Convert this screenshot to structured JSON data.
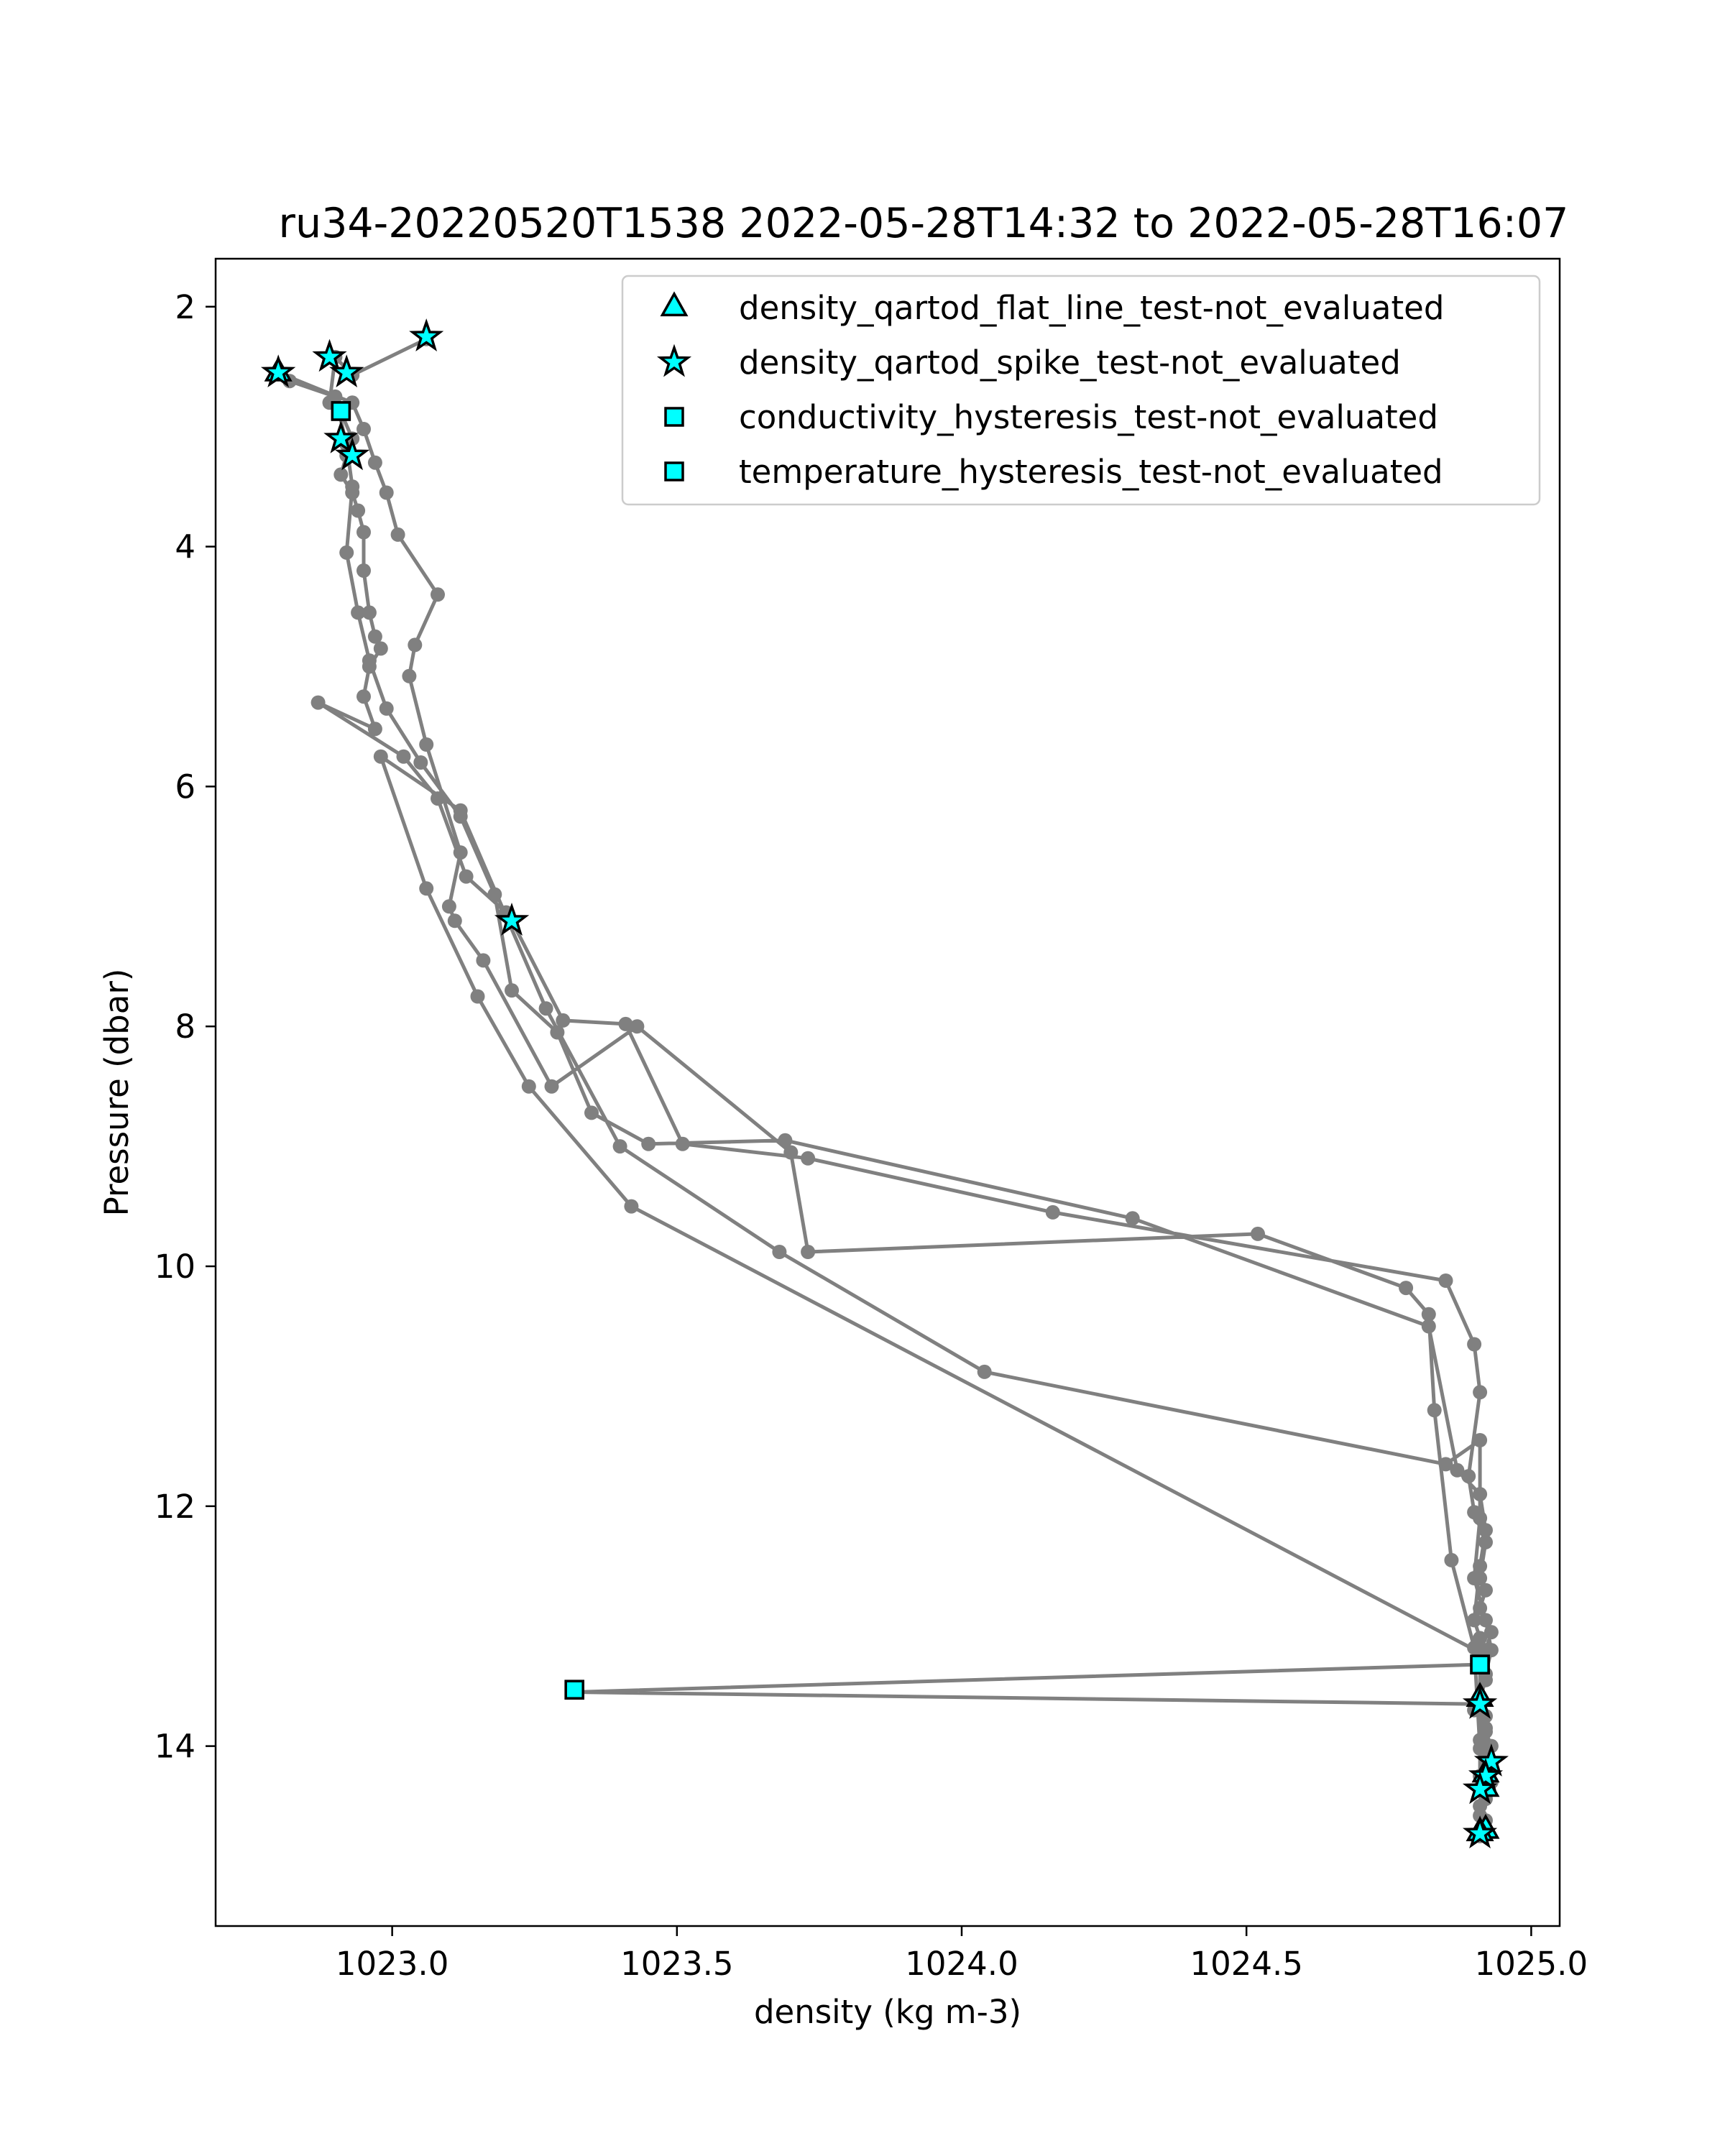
{
  "chart_data": {
    "type": "line",
    "title": "ru34-20220520T1538 2022-05-28T14:32 to 2022-05-28T16:07",
    "xlabel": "density (kg m-3)",
    "ylabel": "Pressure (dbar)",
    "xlim": [
      1022.69,
      1025.05
    ],
    "ylim": [
      15.5,
      1.6
    ],
    "y_inverted": true,
    "xticks": [
      1023.0,
      1023.5,
      1024.0,
      1024.5,
      1025.0
    ],
    "xtick_labels": [
      "1023.0",
      "1023.5",
      "1024.0",
      "1024.5",
      "1025.0"
    ],
    "yticks": [
      2,
      4,
      6,
      8,
      10,
      12,
      14
    ],
    "ytick_labels": [
      "2",
      "4",
      "6",
      "8",
      "10",
      "12",
      "14"
    ],
    "grid": false,
    "legend_position": "upper-right",
    "line_color": "#808080",
    "marker_fill": "#00ffff",
    "profile": {
      "x": [
        1023.06,
        1022.93,
        1022.9,
        1022.89,
        1022.91,
        1022.93,
        1022.92,
        1022.91,
        1022.93,
        1022.94,
        1022.95,
        1022.95,
        1022.96,
        1022.97,
        1022.98,
        1022.96,
        1022.95,
        1022.97,
        1022.87,
        1023.02,
        1023.08,
        1023.13,
        1023.2,
        1023.21,
        1023.3,
        1023.41,
        1023.51,
        1023.73,
        1024.16,
        1024.85,
        1024.9,
        1024.91,
        1024.89,
        1024.9,
        1024.92,
        1024.91,
        1024.92,
        1024.91,
        1024.93,
        1024.92,
        1024.91,
        1024.92,
        1024.91,
        1024.9,
        1024.92,
        1024.91,
        1024.92,
        1024.93,
        1024.92,
        1024.91,
        1024.91,
        1023.32,
        1024.91,
        1024.92,
        1024.92,
        1024.93,
        1024.92,
        1024.91,
        1024.92,
        1024.91,
        1024.92,
        1024.92,
        1024.91,
        1024.91,
        1024.92,
        1024.93,
        1024.92,
        1024.91,
        1024.9,
        1024.86,
        1024.83,
        1024.82,
        1024.78,
        1024.52,
        1023.73,
        1023.7,
        1023.43,
        1023.28,
        1023.16,
        1023.11,
        1023.1,
        1023.12,
        1023.06,
        1023.03,
        1023.04,
        1023.08,
        1023.01,
        1022.99,
        1022.97,
        1022.95,
        1022.93,
        1022.8,
        1022.82,
        1022.9,
        1022.92,
        1022.93,
        1022.92,
        1022.94,
        1022.96,
        1022.99,
        1023.05,
        1023.12,
        1023.18,
        1023.21,
        1023.29,
        1023.35,
        1023.45,
        1023.69,
        1024.3,
        1024.82,
        1024.87,
        1024.91,
        1024.92,
        1024.91,
        1024.9,
        1024.91,
        1024.91,
        1023.42,
        1023.24,
        1023.15,
        1023.06,
        1022.98,
        1023.12,
        1023.27,
        1023.4,
        1023.68,
        1024.04,
        1024.85,
        1024.91,
        1024.91,
        1024.9,
        1024.92,
        1024.93,
        1024.92
      ],
      "y": [
        2.27,
        2.57,
        2.42,
        2.8,
        2.88,
        3.1,
        3.24,
        3.4,
        3.55,
        3.7,
        3.88,
        4.2,
        4.55,
        4.75,
        4.85,
        5.0,
        5.25,
        5.52,
        5.3,
        5.75,
        6.1,
        6.75,
        7.05,
        7.12,
        7.95,
        7.98,
        8.98,
        9.1,
        9.55,
        10.12,
        10.65,
        11.05,
        11.75,
        12.05,
        12.3,
        12.6,
        12.7,
        12.85,
        13.05,
        13.2,
        13.28,
        13.45,
        13.6,
        13.7,
        13.85,
        13.95,
        14.05,
        14.14,
        14.25,
        14.35,
        13.32,
        13.55,
        13.65,
        13.75,
        13.88,
        14.0,
        14.12,
        14.25,
        14.36,
        14.5,
        14.62,
        14.7,
        14.75,
        14.58,
        14.44,
        14.3,
        14.18,
        14.02,
        13.18,
        12.45,
        11.2,
        10.4,
        10.18,
        9.73,
        9.88,
        9.05,
        8.0,
        8.5,
        7.45,
        7.12,
        7.0,
        6.55,
        5.65,
        5.08,
        4.82,
        4.4,
        3.9,
        3.55,
        3.3,
        3.02,
        2.8,
        2.55,
        2.62,
        2.75,
        3.15,
        3.5,
        4.05,
        4.55,
        4.95,
        5.35,
        5.8,
        6.25,
        6.9,
        7.7,
        8.05,
        8.72,
        8.98,
        8.95,
        9.6,
        10.5,
        11.7,
        11.9,
        12.2,
        12.5,
        12.95,
        13.1,
        13.22,
        9.5,
        8.5,
        7.75,
        6.85,
        5.75,
        6.2,
        7.85,
        9.0,
        9.88,
        10.88,
        11.65,
        11.45,
        12.1,
        12.6,
        12.95,
        13.2,
        13.4
      ],
      "marker": "circle",
      "color": "#808080"
    },
    "series": [
      {
        "name": "density_qartod_flat_line_test-not_evaluated",
        "marker": "triangle",
        "x": [
          1024.91,
          1024.92,
          1024.92,
          1024.92,
          1024.91,
          1022.8
        ],
        "y": [
          13.6,
          14.23,
          14.35,
          14.7,
          14.72,
          2.55
        ]
      },
      {
        "name": "density_qartod_spike_test-not_evaluated",
        "marker": "star",
        "x": [
          1023.06,
          1022.8,
          1022.89,
          1022.92,
          1022.91,
          1022.93,
          1023.21,
          1024.91,
          1024.93,
          1024.92,
          1024.91,
          1024.91
        ],
        "y": [
          2.25,
          2.55,
          2.42,
          2.55,
          3.1,
          3.24,
          7.12,
          13.65,
          14.13,
          14.25,
          14.36,
          14.73
        ]
      },
      {
        "name": "conductivity_hysteresis_test-not_evaluated",
        "marker": "square",
        "x": [
          1022.91,
          1023.32,
          1024.91
        ],
        "y": [
          2.87,
          13.53,
          13.32
        ]
      },
      {
        "name": "temperature_hysteresis_test-not_evaluated",
        "marker": "square",
        "x": [
          1022.91,
          1023.32,
          1024.91
        ],
        "y": [
          2.87,
          13.53,
          13.32
        ]
      }
    ]
  }
}
